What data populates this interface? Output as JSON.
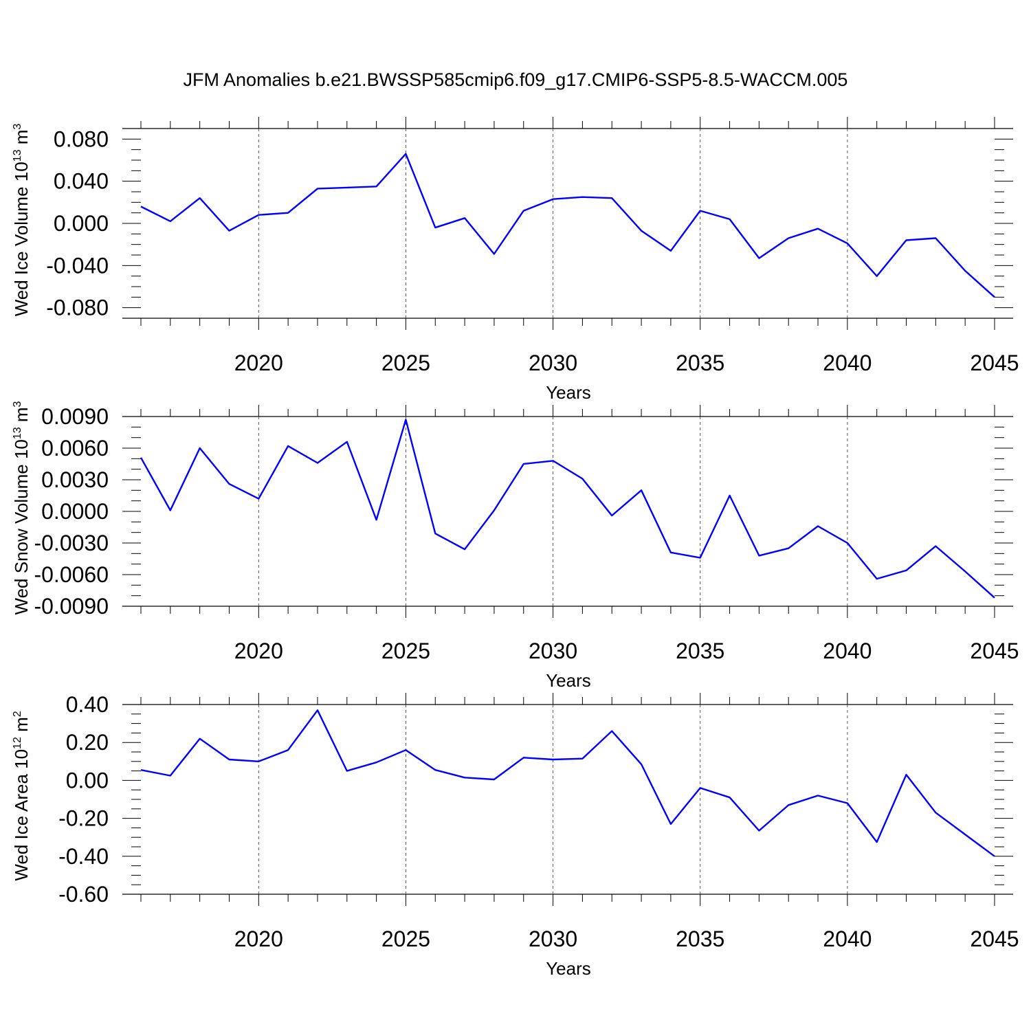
{
  "title": "JFM Anomalies b.e21.BWSSP585cmip6.f09_g17.CMIP6-SSP5-8.5-WACCM.005",
  "colors": {
    "series": "#0000ff",
    "axis": "#000000",
    "grid": "#555555"
  },
  "chart_data": [
    {
      "type": "line",
      "ylabel_main": "Wed Ice Volume 10",
      "ylabel_sup": "13",
      "ylabel_unit": "m",
      "ylabel_unit_sup": "3",
      "xlabel": "Years",
      "xlim": [
        2016,
        2045
      ],
      "ylim": [
        -0.09,
        0.09
      ],
      "yticks": [
        0.08,
        0.04,
        0.0,
        -0.04,
        -0.08
      ],
      "ytick_labels": [
        "0.080",
        "0.040",
        "0.000",
        "-0.040",
        "-0.080"
      ],
      "yminor_step": 0.01,
      "xticks": [
        2020,
        2025,
        2030,
        2035,
        2040,
        2045
      ],
      "xtick_labels": [
        "2020",
        "2025",
        "2030",
        "2035",
        "2040",
        "2045"
      ],
      "grid": "x-dashed",
      "series": [
        {
          "x": [
            2016,
            2017,
            2018,
            2019,
            2020,
            2021,
            2022,
            2023,
            2024,
            2025,
            2026,
            2027,
            2028,
            2029,
            2030,
            2031,
            2032,
            2033,
            2034,
            2035,
            2036,
            2037,
            2038,
            2039,
            2040,
            2041,
            2042,
            2043,
            2044,
            2045
          ],
          "values": [
            0.016,
            0.002,
            0.024,
            -0.007,
            0.008,
            0.01,
            0.033,
            0.034,
            0.035,
            0.066,
            -0.004,
            0.005,
            -0.029,
            0.012,
            0.023,
            0.025,
            0.024,
            -0.007,
            -0.026,
            0.012,
            0.004,
            -0.033,
            -0.014,
            -0.005,
            -0.019,
            -0.05,
            -0.016,
            -0.014,
            -0.045,
            -0.07
          ]
        }
      ]
    },
    {
      "type": "line",
      "ylabel_main": "Wed Snow Volume 10",
      "ylabel_sup": "13",
      "ylabel_unit": "m",
      "ylabel_unit_sup": "3",
      "xlabel": "Years",
      "xlim": [
        2016,
        2045
      ],
      "ylim": [
        -0.009,
        0.009
      ],
      "yticks": [
        0.009,
        0.006,
        0.003,
        0.0,
        -0.003,
        -0.006,
        -0.009
      ],
      "ytick_labels": [
        "0.0090",
        "0.0060",
        "0.0030",
        "0.0000",
        "-0.0030",
        "-0.0060",
        "-0.0090"
      ],
      "yminor_step": 0.001,
      "xticks": [
        2020,
        2025,
        2030,
        2035,
        2040,
        2045
      ],
      "xtick_labels": [
        "2020",
        "2025",
        "2030",
        "2035",
        "2040",
        "2045"
      ],
      "grid": "x-dashed",
      "series": [
        {
          "x": [
            2016,
            2017,
            2018,
            2019,
            2020,
            2021,
            2022,
            2023,
            2024,
            2025,
            2026,
            2027,
            2028,
            2029,
            2030,
            2031,
            2032,
            2033,
            2034,
            2035,
            2036,
            2037,
            2038,
            2039,
            2040,
            2041,
            2042,
            2043,
            2044,
            2045
          ],
          "values": [
            0.0051,
            0.0001,
            0.006,
            0.0026,
            0.0012,
            0.0062,
            0.0046,
            0.0066,
            -0.0008,
            0.0087,
            -0.0021,
            -0.0036,
            0.0001,
            0.0045,
            0.0048,
            0.0031,
            -0.0004,
            0.002,
            -0.0039,
            -0.0044,
            0.0015,
            -0.0042,
            -0.0035,
            -0.0014,
            -0.003,
            -0.0064,
            -0.0056,
            -0.0033,
            -0.0057,
            -0.0082
          ]
        }
      ]
    },
    {
      "type": "line",
      "ylabel_main": "Wed Ice Area 10",
      "ylabel_sup": "12",
      "ylabel_unit": "m",
      "ylabel_unit_sup": "2",
      "xlabel": "Years",
      "xlim": [
        2016,
        2045
      ],
      "ylim": [
        -0.6,
        0.4
      ],
      "yticks": [
        0.4,
        0.2,
        0.0,
        -0.2,
        -0.4,
        -0.6
      ],
      "ytick_labels": [
        "0.40",
        "0.20",
        "0.00",
        "-0.20",
        "-0.40",
        "-0.60"
      ],
      "yminor_step": 0.05,
      "xticks": [
        2020,
        2025,
        2030,
        2035,
        2040,
        2045
      ],
      "xtick_labels": [
        "2020",
        "2025",
        "2030",
        "2035",
        "2040",
        "2045"
      ],
      "grid": "x-dashed",
      "series": [
        {
          "x": [
            2016,
            2017,
            2018,
            2019,
            2020,
            2021,
            2022,
            2023,
            2024,
            2025,
            2026,
            2027,
            2028,
            2029,
            2030,
            2031,
            2032,
            2033,
            2034,
            2035,
            2036,
            2037,
            2038,
            2039,
            2040,
            2041,
            2042,
            2043,
            2044,
            2045
          ],
          "values": [
            0.055,
            0.025,
            0.22,
            0.11,
            0.1,
            0.16,
            0.37,
            0.05,
            0.095,
            0.16,
            0.055,
            0.015,
            0.005,
            0.12,
            0.11,
            0.115,
            0.26,
            0.085,
            -0.23,
            -0.04,
            -0.09,
            -0.265,
            -0.13,
            -0.08,
            -0.12,
            -0.325,
            0.03,
            -0.17,
            -0.285,
            -0.4
          ]
        }
      ]
    }
  ]
}
